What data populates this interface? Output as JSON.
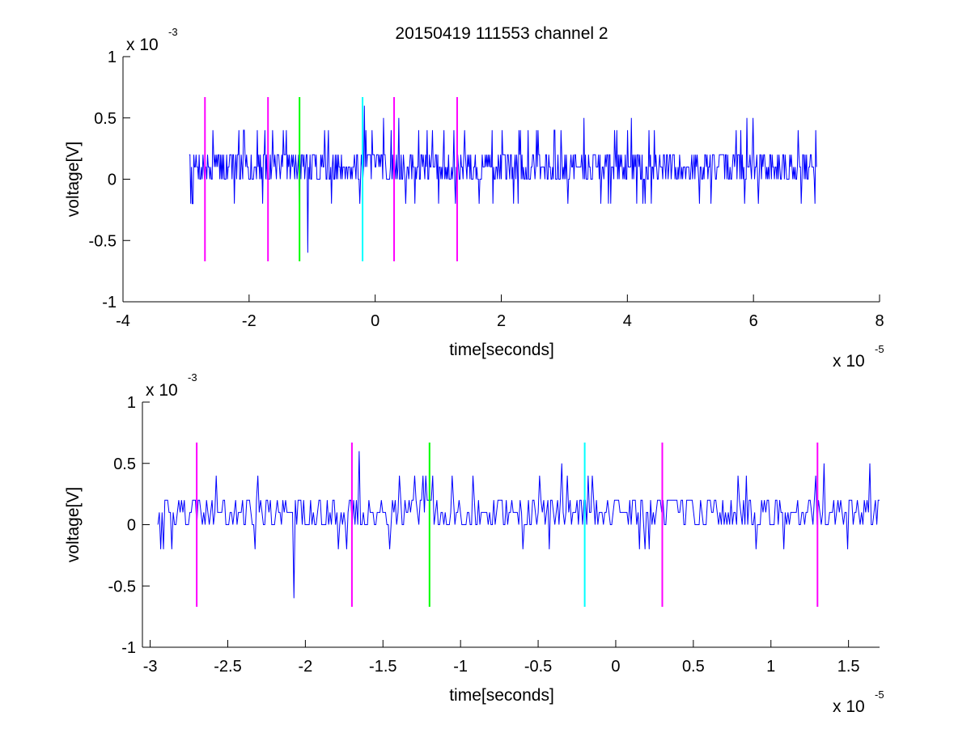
{
  "title": "20150419 111553 channel 2",
  "colors": {
    "signal": "#0000ff",
    "magenta": "#ff00ff",
    "green": "#00ff00",
    "cyan": "#00ffff",
    "axis": "#000000"
  },
  "chart_data": [
    {
      "type": "line",
      "title": "20150419 111553 channel 2",
      "xlabel": "time[seconds]",
      "ylabel": "voltage[V]",
      "x_exponent_label": "x 10",
      "x_exponent": "-5",
      "y_exponent_label": "x 10",
      "y_exponent": "-3",
      "xlim": [
        -4,
        8
      ],
      "ylim": [
        -1,
        1
      ],
      "xticks": [
        -4,
        -2,
        0,
        2,
        4,
        6,
        8
      ],
      "xtick_labels": [
        "-4",
        "-2",
        "0",
        "2",
        "4",
        "6",
        "8"
      ],
      "yticks": [
        1,
        0.5,
        0,
        -0.5,
        -1
      ],
      "ytick_labels": [
        "1",
        "0.5",
        "0",
        "-0.5",
        "-1"
      ],
      "signal": {
        "x_start": -2.95,
        "x_end": 7.0,
        "y_levels": [
          0,
          0.1,
          0.2
        ],
        "y_max": 0.6,
        "y_min": -0.6
      },
      "markers": [
        {
          "x": -2.7,
          "color": "magenta",
          "y_top": 0.67,
          "y_bottom": -0.67
        },
        {
          "x": -1.7,
          "color": "magenta",
          "y_top": 0.67,
          "y_bottom": -0.67
        },
        {
          "x": -1.2,
          "color": "green",
          "y_top": 0.67,
          "y_bottom": -0.67
        },
        {
          "x": -0.2,
          "color": "cyan",
          "y_top": 0.67,
          "y_bottom": -0.67
        },
        {
          "x": 0.3,
          "color": "magenta",
          "y_top": 0.67,
          "y_bottom": -0.67
        },
        {
          "x": 1.3,
          "color": "magenta",
          "y_top": 0.67,
          "y_bottom": -0.67
        }
      ]
    },
    {
      "type": "line",
      "title": "",
      "xlabel": "time[seconds]",
      "ylabel": "voltage[V]",
      "x_exponent_label": "x 10",
      "x_exponent": "-5",
      "y_exponent_label": "x 10",
      "y_exponent": "-3",
      "xlim": [
        -3.05,
        1.7
      ],
      "ylim": [
        -1,
        1
      ],
      "xticks": [
        -3,
        -2.5,
        -2,
        -1.5,
        -1,
        -0.5,
        0,
        0.5,
        1,
        1.5
      ],
      "xtick_labels": [
        "-3",
        "-2.5",
        "-2",
        "-1.5",
        "-1",
        "-0.5",
        "0",
        "0.5",
        "1",
        "1.5"
      ],
      "yticks": [
        1,
        0.5,
        0,
        -0.5,
        -1
      ],
      "ytick_labels": [
        "1",
        "0.5",
        "0",
        "-0.5",
        "-1"
      ],
      "signal": {
        "x_start": -2.95,
        "x_end": 1.7,
        "y_levels": [
          0,
          0.1,
          0.2
        ],
        "y_max": 0.6,
        "y_min": -0.6
      },
      "markers": [
        {
          "x": -2.7,
          "color": "magenta",
          "y_top": 0.67,
          "y_bottom": -0.67
        },
        {
          "x": -1.7,
          "color": "magenta",
          "y_top": 0.67,
          "y_bottom": -0.67
        },
        {
          "x": -1.2,
          "color": "green",
          "y_top": 0.67,
          "y_bottom": -0.67
        },
        {
          "x": -0.2,
          "color": "cyan",
          "y_top": 0.67,
          "y_bottom": -0.67
        },
        {
          "x": 0.3,
          "color": "magenta",
          "y_top": 0.67,
          "y_bottom": -0.67
        },
        {
          "x": 1.3,
          "color": "magenta",
          "y_top": 0.67,
          "y_bottom": -0.67
        }
      ]
    }
  ]
}
